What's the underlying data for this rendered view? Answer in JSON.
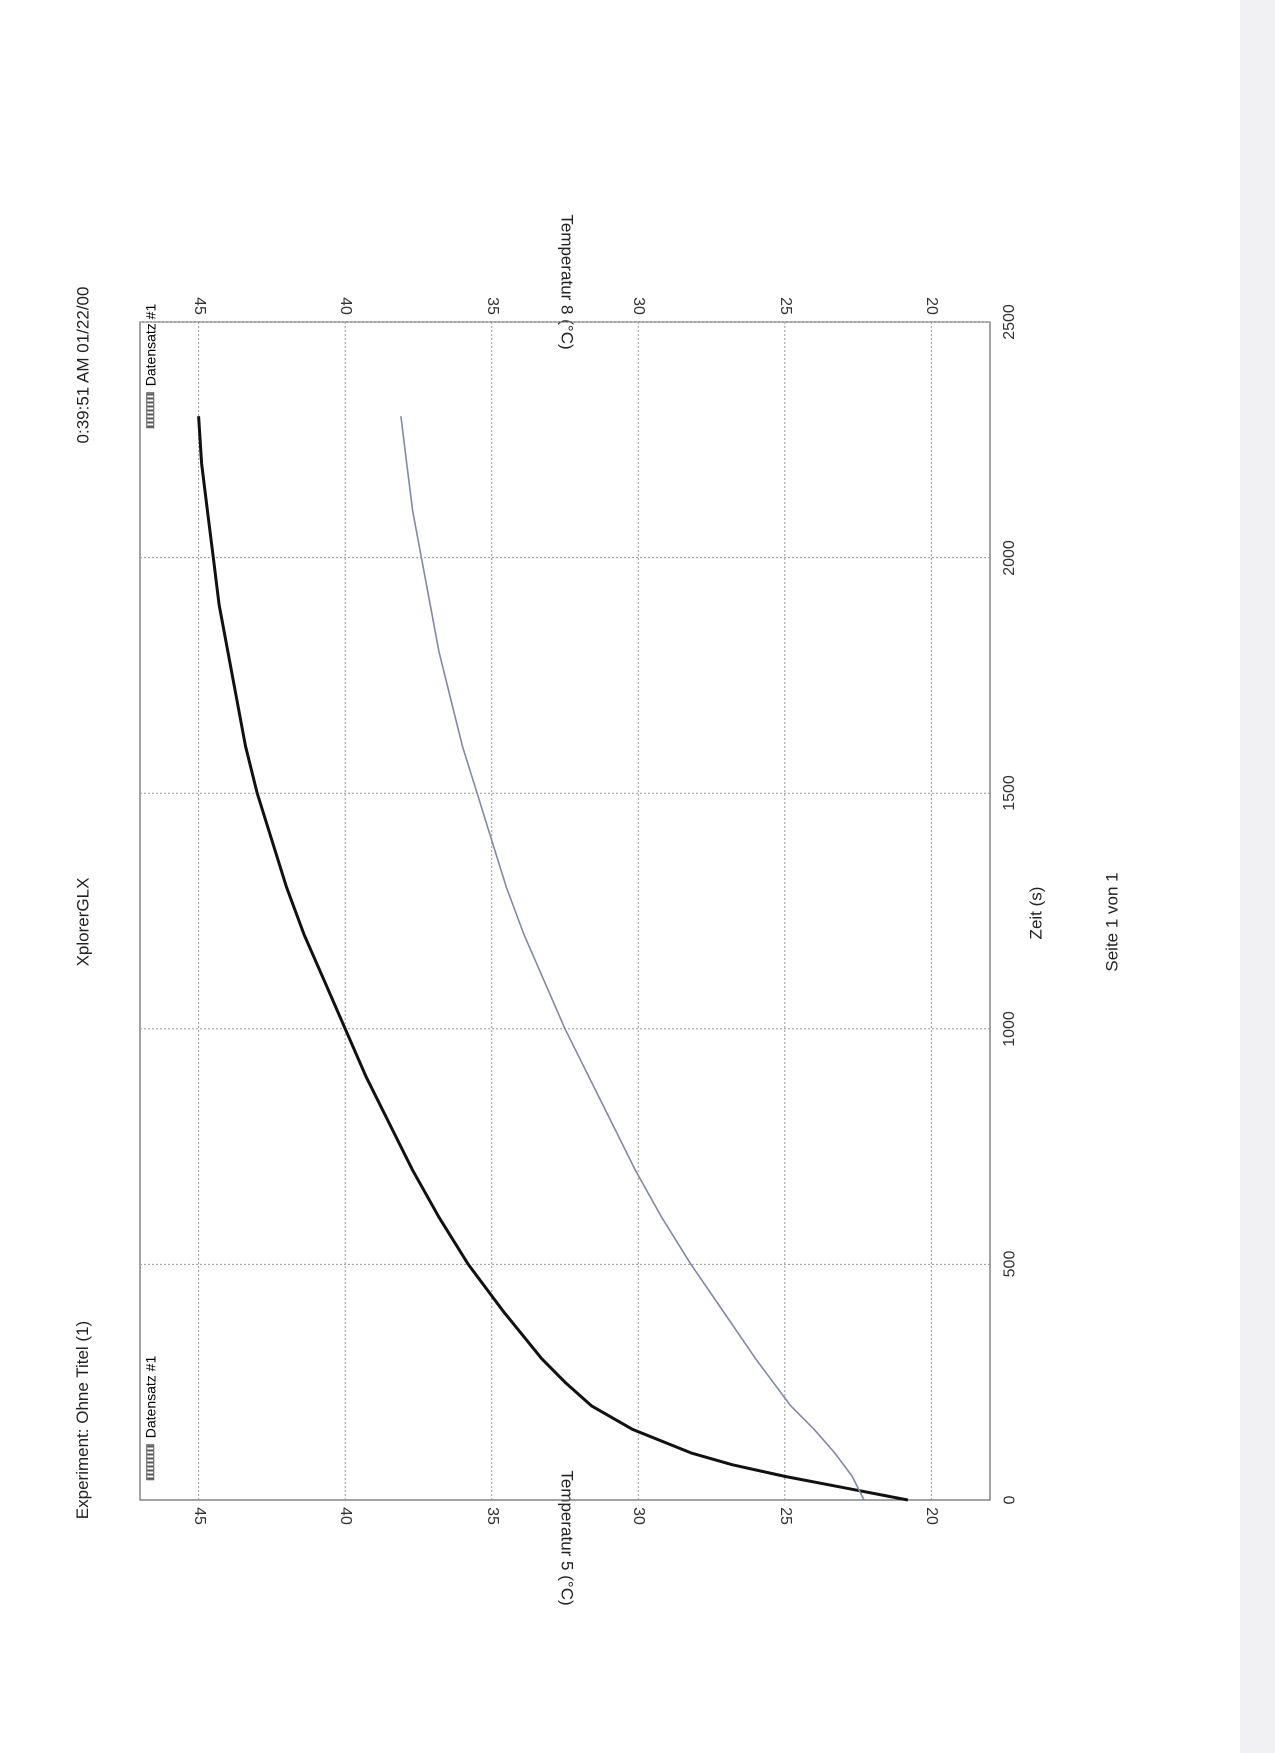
{
  "header": {
    "experiment": "Experiment: Ohne Titel (1)",
    "app": "XplorerGLX",
    "timestamp": "0:39:51 AM 01/22/00"
  },
  "footer": {
    "page": "Seite 1 von 1"
  },
  "chart_data": {
    "type": "line",
    "xlabel": "Zeit (s)",
    "ylabel_left": "Temperatur 5 (°C)",
    "ylabel_right": "Temperatur 8 (°C)",
    "xlim": [
      0,
      2500
    ],
    "ylim": [
      18,
      47
    ],
    "x_ticks": [
      0,
      500,
      1000,
      1500,
      2000,
      2500
    ],
    "y_ticks": [
      20,
      25,
      30,
      35,
      40,
      45
    ],
    "grid": true,
    "legend_left": "Datensatz #1",
    "legend_right": "Datensatz #1",
    "series": [
      {
        "axis": "Temperatur 5",
        "color": "#111111",
        "x": [
          0,
          25,
          50,
          75,
          100,
          150,
          200,
          250,
          300,
          400,
          500,
          600,
          700,
          800,
          900,
          1000,
          1100,
          1200,
          1300,
          1400,
          1500,
          1600,
          1700,
          1800,
          1900,
          2000,
          2100,
          2200,
          2300
        ],
        "y": [
          20.8,
          22.9,
          25.0,
          26.8,
          28.2,
          30.2,
          31.6,
          32.5,
          33.3,
          34.6,
          35.8,
          36.8,
          37.7,
          38.5,
          39.3,
          40.0,
          40.7,
          41.4,
          42.0,
          42.5,
          43.0,
          43.4,
          43.7,
          44.0,
          44.3,
          44.5,
          44.7,
          44.9,
          45.0
        ]
      },
      {
        "axis": "Temperatur 8",
        "color": "#7f8aa8",
        "x": [
          0,
          50,
          100,
          150,
          200,
          300,
          400,
          500,
          600,
          700,
          800,
          900,
          1000,
          1100,
          1200,
          1300,
          1400,
          1500,
          1600,
          1700,
          1800,
          1900,
          2000,
          2100,
          2200,
          2300
        ],
        "y": [
          22.3,
          22.7,
          23.3,
          24.0,
          24.8,
          26.0,
          27.1,
          28.2,
          29.2,
          30.1,
          30.9,
          31.7,
          32.5,
          33.2,
          33.9,
          34.5,
          35.0,
          35.5,
          36.0,
          36.4,
          36.8,
          37.1,
          37.4,
          37.7,
          37.9,
          38.1
        ]
      }
    ]
  }
}
